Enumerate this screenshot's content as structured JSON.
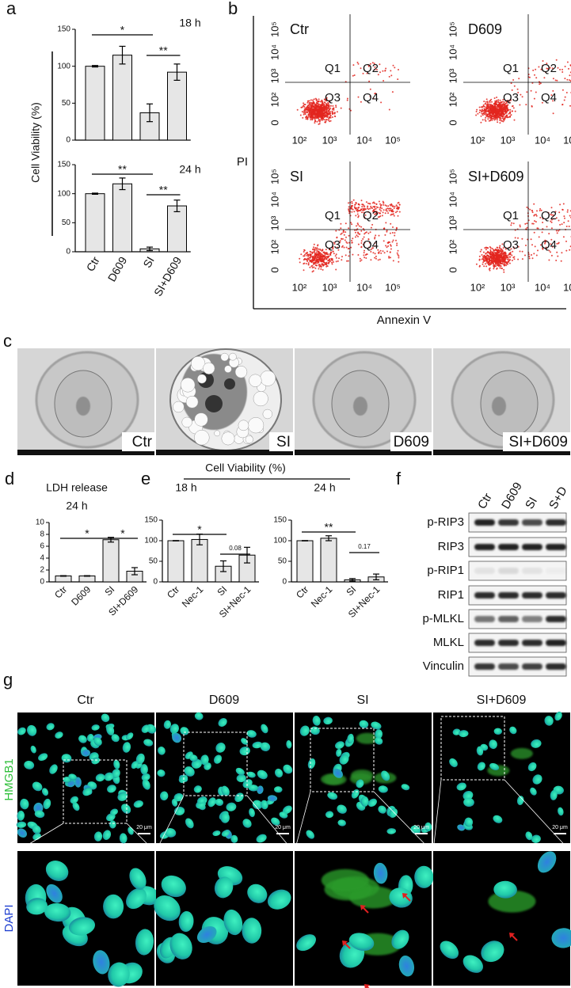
{
  "panel_labels": [
    "a",
    "b",
    "c",
    "d",
    "e",
    "f",
    "g"
  ],
  "chart_data": [
    {
      "type": "bar",
      "ylabel": "Cell Viability (%)",
      "label": "18 h",
      "values": [
        100,
        115,
        37,
        92
      ],
      "errors": [
        1,
        12,
        12,
        11
      ],
      "ylim": [
        0,
        150
      ],
      "yticks": [
        0,
        50,
        100,
        150
      ],
      "significance": [
        "*",
        "**"
      ],
      "color": "#e6e6e6"
    },
    {
      "type": "bar",
      "label": "24 h",
      "categories": [
        "Ctr",
        "D609",
        "SI",
        "SI+D609"
      ],
      "values": [
        100,
        117,
        5,
        79
      ],
      "errors": [
        1,
        10,
        3,
        10
      ],
      "ylim": [
        0,
        150
      ],
      "yticks": [
        0,
        50,
        100,
        150
      ],
      "significance": [
        "**",
        "**"
      ],
      "color": "#e6e6e6"
    },
    {
      "type": "bar",
      "title": "LDH release",
      "label": "24 h",
      "categories": [
        "Ctr",
        "D609",
        "SI",
        "SI+D609"
      ],
      "values": [
        1,
        1,
        7.1,
        1.8
      ],
      "errors": [
        0.05,
        0.05,
        0.4,
        0.6
      ],
      "ylim": [
        0,
        10
      ],
      "yticks": [
        0,
        2,
        4,
        6,
        8,
        10
      ],
      "significance": [
        "*",
        "*"
      ],
      "color": "#e6e6e6"
    },
    {
      "type": "bar",
      "label": "18 h",
      "categories": [
        "Ctr",
        "Nec-1",
        "SI",
        "SI+Nec-1"
      ],
      "values": [
        100,
        103,
        38,
        65
      ],
      "errors": [
        0.5,
        13,
        13,
        19
      ],
      "ylim": [
        0,
        150
      ],
      "yticks": [
        0,
        50,
        100,
        150
      ],
      "significance": [
        "*",
        "0.08"
      ],
      "color": "#e6e6e6"
    },
    {
      "type": "bar",
      "label": "24 h",
      "categories": [
        "Ctr",
        "Nec-1",
        "SI",
        "SI+Nec-1"
      ],
      "values": [
        100,
        106,
        5,
        12
      ],
      "errors": [
        0.5,
        6,
        3,
        7
      ],
      "ylim": [
        0,
        150
      ],
      "yticks": [
        0,
        50,
        100,
        150
      ],
      "significance": [
        "**",
        "0.17"
      ],
      "color": "#e6e6e6"
    }
  ],
  "panel_e_title": "Cell Viability (%)",
  "flow": {
    "plots": [
      "Ctr",
      "D609",
      "SI",
      "SI+D609"
    ],
    "quadrants": [
      "Q1",
      "Q2",
      "Q3",
      "Q4"
    ],
    "yticks": [
      "10⁵",
      "10⁴",
      "10³",
      "10²",
      "0"
    ],
    "xticks": [
      "10²",
      "10³",
      "10⁴",
      "10⁵"
    ],
    "ylabel": "PI",
    "xlabel": "Annexin V"
  },
  "tem": {
    "labels": [
      "Ctr",
      "SI",
      "D609",
      "SI+D609"
    ]
  },
  "western": {
    "lanes": [
      "Ctr",
      "D609",
      "SI",
      "S+D"
    ],
    "rows": [
      "p-RIP3",
      "RIP3",
      "p-RIP1",
      "RIP1",
      "p-MLKL",
      "MLKL",
      "Vinculin"
    ]
  },
  "if": {
    "columns": [
      "Ctr",
      "D609",
      "SI",
      "SI+D609"
    ],
    "channels": [
      "HMGB1",
      "DAPI"
    ],
    "scale_bar": "20 μm"
  }
}
